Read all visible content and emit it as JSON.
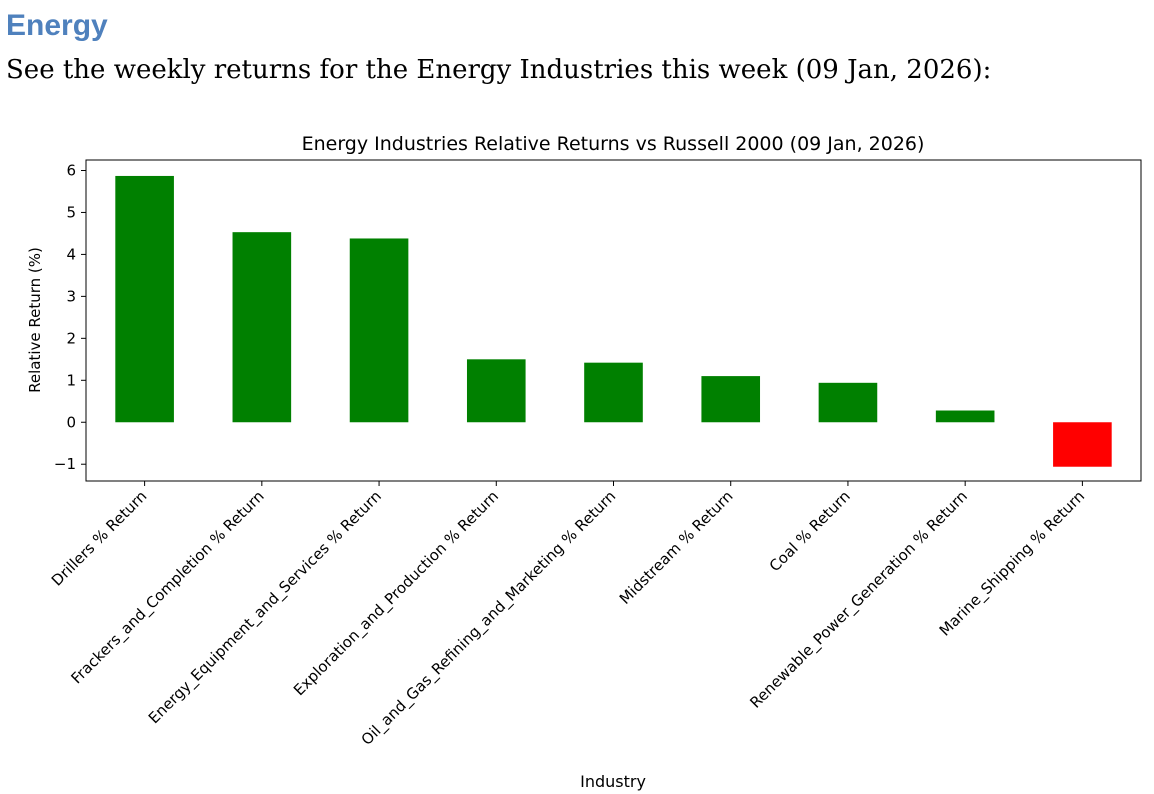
{
  "page": {
    "heading": "Energy",
    "intro": "See the weekly returns for the Energy Industries this week (09 Jan, 2026):"
  },
  "colors": {
    "heading": "#4f81bd",
    "positive_bar": "#008000",
    "negative_bar": "#ff0000"
  },
  "chart_data": {
    "type": "bar",
    "title": "Energy Industries Relative Returns vs Russell 2000 (09 Jan, 2026)",
    "xlabel": "Industry",
    "ylabel": "Relative Return (%)",
    "ylim": [
      -1.4,
      6.25
    ],
    "yticks": [
      -1,
      0,
      1,
      2,
      3,
      4,
      5,
      6
    ],
    "ytick_labels": [
      "−1",
      "0",
      "1",
      "2",
      "3",
      "4",
      "5",
      "6"
    ],
    "grid": false,
    "legend": "none",
    "categories": [
      "Drillers % Return",
      "Frackers_and_Completion % Return",
      "Energy_Equipment_and_Services % Return",
      "Exploration_and_Production % Return",
      "Oil_and_Gas_Refining_and_Marketing % Return",
      "Midstream % Return",
      "Coal % Return",
      "Renewable_Power_Generation % Return",
      "Marine_Shipping % Return"
    ],
    "values": [
      5.87,
      4.53,
      4.38,
      1.5,
      1.42,
      1.1,
      0.94,
      0.28,
      -1.06
    ]
  }
}
